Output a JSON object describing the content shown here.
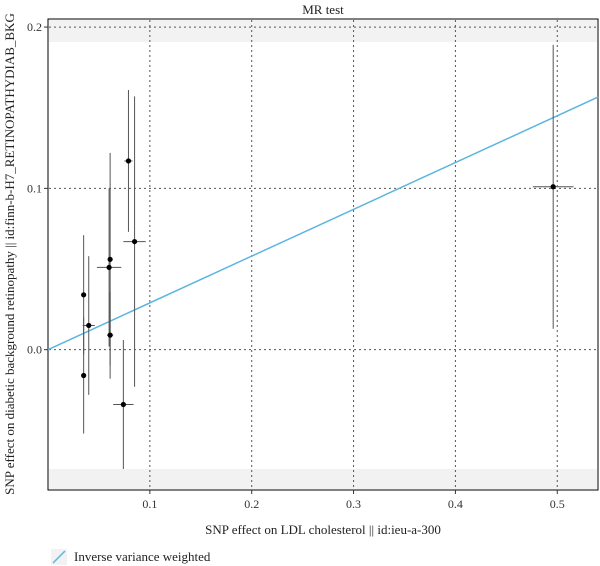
{
  "chart_data": {
    "type": "scatter",
    "title": "MR test",
    "xlabel": "SNP effect on LDL cholesterol || id:ieu-a-300",
    "ylabel": "SNP effect on diabetic background retinopathy || id:finn-b-H7_RETINOPATHYDIAB_BKG",
    "xlim": [
      0.0,
      0.54
    ],
    "ylim": [
      -0.087,
      0.205
    ],
    "x_ticks": [
      0.1,
      0.2,
      0.3,
      0.4,
      0.5
    ],
    "x_tick_labels": [
      "0.1",
      "0.2",
      "0.3",
      "0.4",
      "0.5"
    ],
    "y_ticks": [
      0.0,
      0.1,
      0.2
    ],
    "y_tick_labels": [
      "0.0",
      "0.1",
      "0.2"
    ],
    "grid": true,
    "legend_position": "bottom-left",
    "points": [
      {
        "x": 0.035,
        "y": 0.034,
        "x_err": 0.002,
        "y_err": 0.037
      },
      {
        "x": 0.035,
        "y": -0.016,
        "x_err": 0.002,
        "y_err": 0.036
      },
      {
        "x": 0.04,
        "y": 0.015,
        "x_err": 0.006,
        "y_err": 0.043
      },
      {
        "x": 0.06,
        "y": 0.051,
        "x_err": 0.012,
        "y_err": 0.049
      },
      {
        "x": 0.061,
        "y": 0.056,
        "x_err": 0.002,
        "y_err": 0.066
      },
      {
        "x": 0.061,
        "y": 0.009,
        "x_err": 0.003,
        "y_err": 0.027
      },
      {
        "x": 0.074,
        "y": -0.034,
        "x_err": 0.01,
        "y_err": 0.04
      },
      {
        "x": 0.079,
        "y": 0.117,
        "x_err": 0.004,
        "y_err": 0.044
      },
      {
        "x": 0.085,
        "y": 0.067,
        "x_err": 0.011,
        "y_err": 0.09
      },
      {
        "x": 0.496,
        "y": 0.101,
        "x_err": 0.02,
        "y_err": 0.088
      }
    ],
    "series": [
      {
        "name": "Inverse variance weighted",
        "type": "line",
        "slope": 0.29,
        "intercept": 0.0,
        "color": "#5bb5e0"
      }
    ]
  },
  "colors": {
    "point": "#000000",
    "error_bar": "#555555",
    "ivw_line": "#5bb5e0",
    "panel_band": "#f2f2f2"
  }
}
